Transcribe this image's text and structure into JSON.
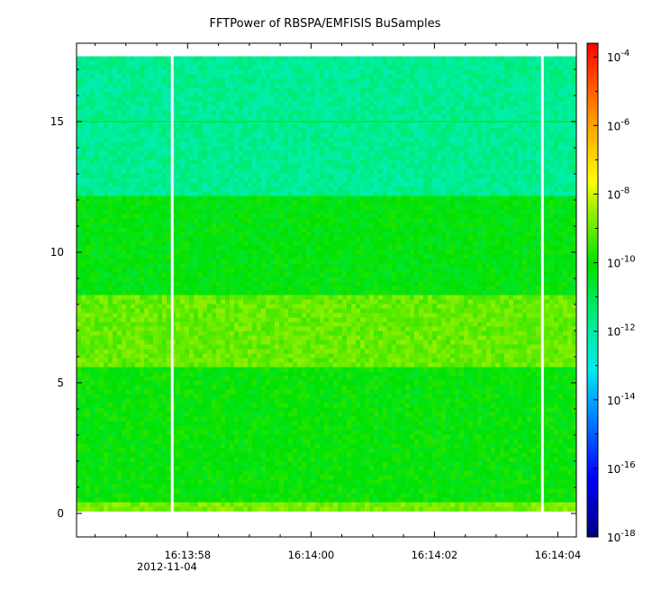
{
  "chart_data": {
    "type": "heatmap",
    "title": "FFTPower of RBSPA/EMFISIS  BuSamples",
    "xlabel": "",
    "ylabel": "",
    "x_ticks": [
      {
        "label": "16:13:58",
        "t": 58
      },
      {
        "label": "16:14:00",
        "t": 60
      },
      {
        "label": "16:14:02",
        "t": 62
      },
      {
        "label": "16:14:04",
        "t": 64
      }
    ],
    "x_date_label": "2012-11-04",
    "x_range_seconds": [
      56.2,
      64.3
    ],
    "y_ticks": [
      0,
      5,
      10,
      15
    ],
    "y_range": [
      -0.9,
      18.0
    ],
    "data_y_range": [
      0,
      17.5
    ],
    "gaps_seconds": [
      57.75,
      63.75
    ],
    "colorbar": {
      "scale": "log",
      "range_exponent": [
        -18,
        -3.6
      ],
      "tick_exponents": [
        -18,
        -16,
        -14,
        -12,
        -10,
        -8,
        -6,
        -4
      ],
      "tick_base": "10"
    },
    "bands": [
      {
        "y": [
          0,
          0.5
        ],
        "log_power": -8.8
      },
      {
        "y": [
          0.5,
          5.6
        ],
        "log_power": -10.1
      },
      {
        "y": [
          5.6,
          8.3
        ],
        "log_power": -9.0
      },
      {
        "y": [
          8.3,
          12.2
        ],
        "log_power": -10.2
      },
      {
        "y": [
          12.2,
          17.5
        ],
        "log_power": -11.8
      }
    ],
    "line_feature": {
      "y": 15.0,
      "log_power": -11.0
    }
  }
}
